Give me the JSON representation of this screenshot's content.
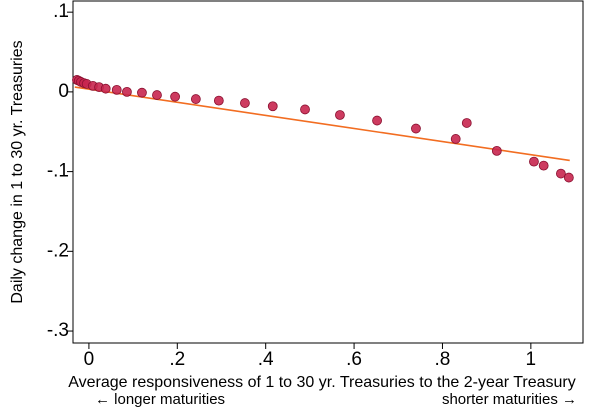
{
  "chart_data": {
    "type": "scatter",
    "x_label": "Average responsiveness of 1 to 30 yr. Treasuries to the 2-year Treasury",
    "y_label": "Daily change in 1 to 30 yr. Treasuries",
    "annotations": [
      "← longer maturities",
      "shorter maturities →"
    ],
    "x": [
      -0.027,
      -0.023,
      -0.018,
      -0.011,
      -0.005,
      0.009,
      0.023,
      0.038,
      0.063,
      0.086,
      0.12,
      0.154,
      0.195,
      0.242,
      0.294,
      0.353,
      0.416,
      0.489,
      0.568,
      0.652,
      0.74,
      0.83,
      0.855,
      0.923,
      1.007,
      1.029,
      1.068,
      1.086
    ],
    "values": [
      0.015,
      0.014,
      0.0125,
      0.011,
      0.01,
      0.0075,
      0.006,
      0.004,
      0.0025,
      0,
      -0.001,
      -0.004,
      -0.006,
      -0.009,
      -0.011,
      -0.014,
      -0.018,
      -0.022,
      -0.029,
      -0.036,
      -0.046,
      -0.059,
      -0.039,
      -0.074,
      -0.0875,
      -0.0925,
      -0.1025,
      -0.1075
    ],
    "color": "#c8264f",
    "fit_line": {
      "x": [
        -0.032,
        1.088
      ],
      "values": [
        0.006,
        -0.086
      ],
      "color": "#f26d21"
    },
    "xlim": [
      -0.036,
      1.118
    ],
    "ylim": [
      -0.315,
      0.114
    ],
    "xticks": [
      0,
      {
        "value": 0.2,
        "label": ".2"
      },
      {
        "value": 0.4,
        "label": ".4"
      },
      {
        "value": 0.6,
        "label": ".6"
      },
      {
        "value": 0.8,
        "label": ".8"
      },
      1
    ],
    "yticks": [
      {
        "value": 0.1,
        "label": ".1"
      },
      0,
      {
        "value": -0.1,
        "label": "-.1"
      },
      {
        "value": -0.2,
        "label": "-.2"
      },
      {
        "value": -0.3,
        "label": "-.3"
      }
    ]
  }
}
